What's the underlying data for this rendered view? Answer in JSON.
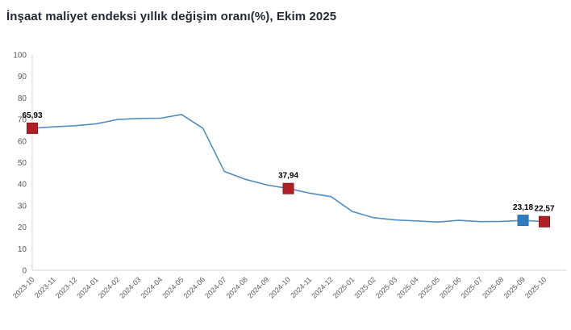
{
  "header": {
    "title": "İnşaat maliyet endeksi yıllık değişim oranı(%), Ekim 2025"
  },
  "chart_data": {
    "type": "line",
    "title": "İnşaat maliyet endeksi yıllık değişim oranı(%), Ekim 2025",
    "xlabel": "",
    "ylabel": "",
    "categories": [
      "2023-10",
      "2023-11",
      "2023-12",
      "2024-01",
      "2024-02",
      "2024-03",
      "2024-04",
      "2024-05",
      "2024-06",
      "2024-07",
      "2024-08",
      "2024-09",
      "2024-10",
      "2024-11",
      "2024-12",
      "2025-01",
      "2025-02",
      "2025-03",
      "2025-04",
      "2025-05",
      "2025-06",
      "2025-07",
      "2025-08",
      "2025-09",
      "2025-10"
    ],
    "series": [
      {
        "name": "İnşaat maliyet endeksi yıllık değişim oranı (%)",
        "values": [
          65.93,
          66.6,
          67.1,
          68.0,
          70.0,
          70.5,
          70.6,
          72.3,
          65.9,
          45.9,
          42.2,
          39.6,
          37.94,
          35.8,
          34.2,
          27.3,
          24.4,
          23.4,
          22.9,
          22.4,
          23.2,
          22.6,
          22.7,
          23.18,
          22.57
        ]
      }
    ],
    "ylim": [
      0,
      100
    ],
    "yticks": [
      0,
      10,
      20,
      30,
      40,
      50,
      60,
      70,
      80,
      90,
      100
    ],
    "grid": false,
    "legend_position": "none",
    "labeled_points": [
      {
        "index": 0,
        "category": "2023-10",
        "label": "65,93",
        "marker_color": "#b01f24",
        "marker_stroke": "#8e191d"
      },
      {
        "index": 12,
        "category": "2024-10",
        "label": "37,94",
        "marker_color": "#b01f24",
        "marker_stroke": "#8e191d"
      },
      {
        "index": 23,
        "category": "2025-09",
        "label": "23,18",
        "marker_color": "#2e7bbf",
        "marker_stroke": "#2a6fae"
      },
      {
        "index": 24,
        "category": "2025-10",
        "label": "22,57",
        "marker_color": "#b01f24",
        "marker_stroke": "#8e191d"
      }
    ],
    "colors": {
      "line": "#4f8dc5",
      "axis": "#d6d6d6",
      "tick_label": "#595959",
      "value_label": "#000000",
      "title": "#242a35",
      "background": "#ffffff"
    }
  }
}
